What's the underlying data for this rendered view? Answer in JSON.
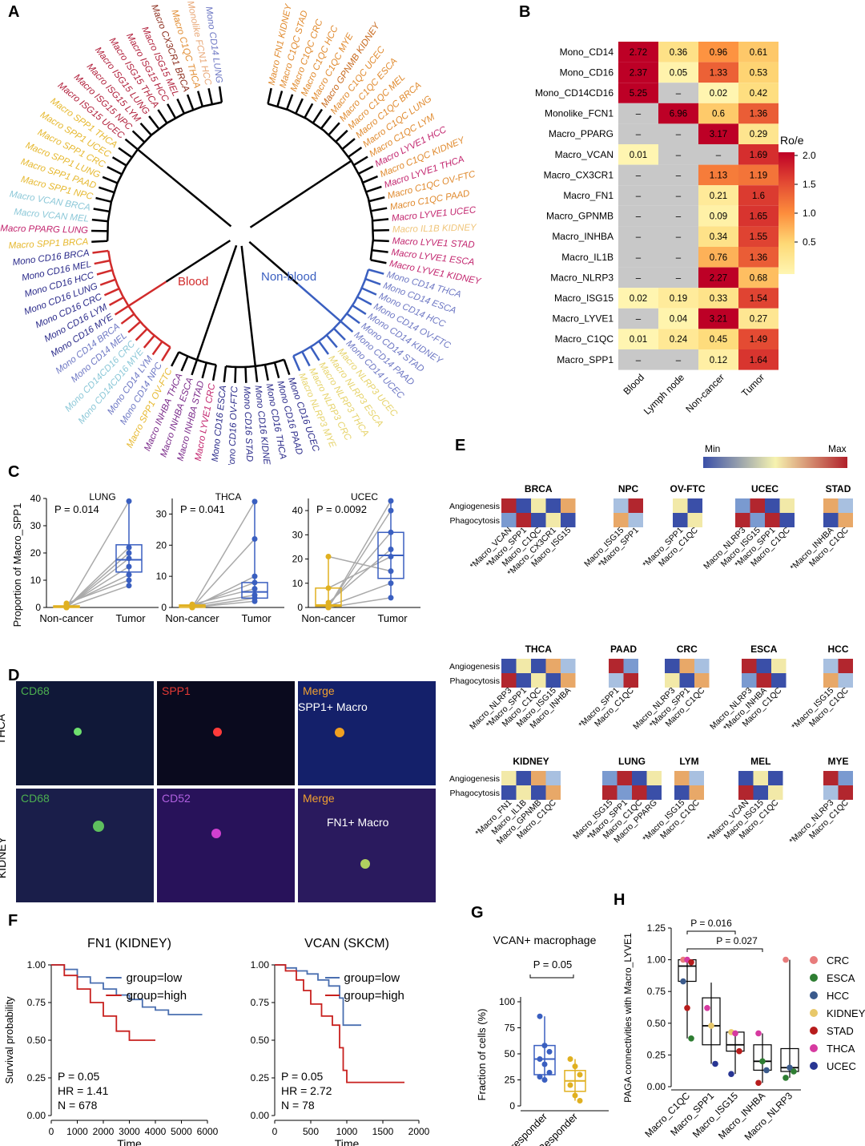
{
  "panels": {
    "A": "A",
    "B": "B",
    "C": "C",
    "D": "D",
    "E": "E",
    "F": "F",
    "G": "G",
    "H": "H"
  },
  "panelA": {
    "blood_label": "Blood",
    "nonblood_label": "Non-blood",
    "leaves": [
      {
        "t": "Macro FN1 KIDNEY",
        "c": "#e08a2e"
      },
      {
        "t": "Macro C1QC STAD",
        "c": "#e08a2e"
      },
      {
        "t": "Macro C1QC CRC",
        "c": "#e08a2e"
      },
      {
        "t": "Macro C1QC HCC",
        "c": "#e08a2e"
      },
      {
        "t": "Macro C1QC MYE",
        "c": "#e08a2e"
      },
      {
        "t": "Macro GPNMB KIDNEY",
        "c": "#c86a1e"
      },
      {
        "t": "Macro C1QC UCEC",
        "c": "#e08a2e"
      },
      {
        "t": "Macro C1QC ESCA",
        "c": "#e08a2e"
      },
      {
        "t": "Macro C1QC MEL",
        "c": "#e08a2e"
      },
      {
        "t": "Macro C1QC BRCA",
        "c": "#e08a2e"
      },
      {
        "t": "Macro C1QC LUNG",
        "c": "#e08a2e"
      },
      {
        "t": "Macro C1QC LYM",
        "c": "#e08a2e"
      },
      {
        "t": "Macro LYVE1 HCC",
        "c": "#c2256e"
      },
      {
        "t": "Macro C1QC KIDNEY",
        "c": "#e08a2e"
      },
      {
        "t": "Macro LYVE1 THCA",
        "c": "#c2256e"
      },
      {
        "t": "Macro C1QC OV-FTC",
        "c": "#e08a2e"
      },
      {
        "t": "Macro C1QC PAAD",
        "c": "#e08a2e"
      },
      {
        "t": "Macro LYVE1 UCEC",
        "c": "#c2256e"
      },
      {
        "t": "Macro IL1B KIDNEY",
        "c": "#f0c57a"
      },
      {
        "t": "Macro LYVE1 STAD",
        "c": "#c2256e"
      },
      {
        "t": "Macro LYVE1 ESCA",
        "c": "#c2256e"
      },
      {
        "t": "Macro LYVE1 KIDNEY",
        "c": "#c2256e"
      },
      {
        "t": "Mono CD14 THCA",
        "c": "#6e78c4"
      },
      {
        "t": "Mono CD14 ESCA",
        "c": "#6e78c4"
      },
      {
        "t": "Mono CD14 HCC",
        "c": "#6e78c4"
      },
      {
        "t": "Mono CD14 OV-FTC",
        "c": "#6e78c4"
      },
      {
        "t": "Mono CD14 KIDNEY",
        "c": "#6e78c4"
      },
      {
        "t": "Mono CD14 STAD",
        "c": "#6e78c4"
      },
      {
        "t": "Mono CD14 PAAD",
        "c": "#6e78c4"
      },
      {
        "t": "Mono CD14 UCEC",
        "c": "#6e78c4"
      },
      {
        "t": "Macro NLRP3 UCEC",
        "c": "#e6d36a"
      },
      {
        "t": "Macro NLRP3 ESCA",
        "c": "#e6d36a"
      },
      {
        "t": "Macro NLRP3 THCA",
        "c": "#e6d36a"
      },
      {
        "t": "Macro NLRP3 CRC",
        "c": "#e6d36a"
      },
      {
        "t": "Macro NLRP3 MYE",
        "c": "#e6d36a"
      },
      {
        "t": "Mono CD16 UCEC",
        "c": "#2a2a8a"
      },
      {
        "t": "Mono CD16 PAAD",
        "c": "#2a2a8a"
      },
      {
        "t": "Mono CD16 THCA",
        "c": "#2a2a8a"
      },
      {
        "t": "Mono CD16 KIDNEY",
        "c": "#2a2a8a"
      },
      {
        "t": "Mono CD16 STAD",
        "c": "#2a2a8a"
      },
      {
        "t": "Mono CD16 OV-FTC",
        "c": "#2a2a8a"
      },
      {
        "t": "Mono CD16 ESCA",
        "c": "#2a2a8a"
      },
      {
        "t": "Macro LYVE1 CRC",
        "c": "#c2256e"
      },
      {
        "t": "Macro INHBA STAD",
        "c": "#7a2a8a"
      },
      {
        "t": "Macro INHBA ESCA",
        "c": "#7a2a8a"
      },
      {
        "t": "Macro INHBA THCA",
        "c": "#7a2a8a"
      },
      {
        "t": "Macro SPP1 OV-FTC",
        "c": "#e6b82e"
      },
      {
        "t": "Mono CD14 NPC",
        "c": "#6e78c4"
      },
      {
        "t": "Mono CD14 LYM",
        "c": "#6e78c4"
      },
      {
        "t": "Mono CD14CD16 MYE",
        "c": "#8cc8d8"
      },
      {
        "t": "Mono CD14CD16 CRC",
        "c": "#8cc8d8"
      },
      {
        "t": "Mono CD14 MEL",
        "c": "#6e78c4"
      },
      {
        "t": "Mono CD14 BRCA",
        "c": "#6e78c4"
      },
      {
        "t": "Mono CD16 MYE",
        "c": "#2a2a8a"
      },
      {
        "t": "Mono CD16 LYM",
        "c": "#2a2a8a"
      },
      {
        "t": "Mono CD16 CRC",
        "c": "#2a2a8a"
      },
      {
        "t": "Mono CD16 LUNG",
        "c": "#2a2a8a"
      },
      {
        "t": "Mono CD16 HCC",
        "c": "#2a2a8a"
      },
      {
        "t": "Mono CD16 MEL",
        "c": "#2a2a8a"
      },
      {
        "t": "Mono CD16 BRCA",
        "c": "#2a2a8a"
      },
      {
        "t": "Macro SPP1 BRCA",
        "c": "#e6b82e"
      },
      {
        "t": "Macro PPARG LUNG",
        "c": "#c2256e"
      },
      {
        "t": "Macro VCAN MEL",
        "c": "#8cc8d8"
      },
      {
        "t": "Macro VCAN BRCA",
        "c": "#8cc8d8"
      },
      {
        "t": "Macro SPP1 NPC",
        "c": "#e6b82e"
      },
      {
        "t": "Macro SPP1 PAAD",
        "c": "#e6b82e"
      },
      {
        "t": "Macro SPP1 LUNG",
        "c": "#e6b82e"
      },
      {
        "t": "Macro SPP1 CRC",
        "c": "#e6b82e"
      },
      {
        "t": "Macro SPP1 UCEC",
        "c": "#e6b82e"
      },
      {
        "t": "Macro SPP1 THCA",
        "c": "#e6b82e"
      },
      {
        "t": "Macro ISG15 UCEC",
        "c": "#b01e3a"
      },
      {
        "t": "Macro ISG15 NPC",
        "c": "#b01e3a"
      },
      {
        "t": "Macro ISG15 LYM",
        "c": "#b01e3a"
      },
      {
        "t": "Macro ISG15 LUNG",
        "c": "#b01e3a"
      },
      {
        "t": "Macro ISG15 THCA",
        "c": "#b01e3a"
      },
      {
        "t": "Macro ISG15 HCC",
        "c": "#b01e3a"
      },
      {
        "t": "Macro ISG15 MEL",
        "c": "#b01e3a"
      },
      {
        "t": "Macro CX3CR1 BRCA",
        "c": "#8a2a1a"
      },
      {
        "t": "Macro C1QC THCA",
        "c": "#e08a2e"
      },
      {
        "t": "Monolike FCN1 HCC",
        "c": "#e8a878"
      },
      {
        "t": "Mono CD14 LUNG",
        "c": "#6e78c4"
      }
    ]
  },
  "panelB": {
    "rows": [
      "Mono_CD14",
      "Mono_CD16",
      "Mono_CD14CD16",
      "Monolike_FCN1",
      "Macro_PPARG",
      "Macro_VCAN",
      "Macro_CX3CR1",
      "Macro_FN1",
      "Macro_GPNMB",
      "Macro_INHBA",
      "Macro_IL1B",
      "Macro_NLRP3",
      "Macro_ISG15",
      "Macro_LYVE1",
      "Macro_C1QC",
      "Macro_SPP1"
    ],
    "cols": [
      "Blood",
      "Lymph node",
      "Non-cancer",
      "Tumor"
    ],
    "values": [
      [
        "2.72",
        "0.36",
        "0.96",
        "0.61"
      ],
      [
        "2.37",
        "0.05",
        "1.33",
        "0.53"
      ],
      [
        "5.25",
        "–",
        "0.02",
        "0.42"
      ],
      [
        "–",
        "6.96",
        "0.6",
        "1.36"
      ],
      [
        "–",
        "–",
        "3.17",
        "0.29"
      ],
      [
        "0.01",
        "–",
        "–",
        "1.69"
      ],
      [
        "–",
        "–",
        "1.13",
        "1.19"
      ],
      [
        "–",
        "–",
        "0.21",
        "1.6"
      ],
      [
        "–",
        "–",
        "0.09",
        "1.65"
      ],
      [
        "–",
        "–",
        "0.34",
        "1.55"
      ],
      [
        "–",
        "–",
        "0.76",
        "1.36"
      ],
      [
        "–",
        "–",
        "2.27",
        "0.68"
      ],
      [
        "0.02",
        "0.19",
        "0.33",
        "1.54"
      ],
      [
        "–",
        "0.04",
        "3.21",
        "0.27"
      ],
      [
        "0.01",
        "0.24",
        "0.45",
        "1.49"
      ],
      [
        "–",
        "–",
        "0.12",
        "1.64"
      ]
    ],
    "legend_title": "Ro/e",
    "legend_ticks": [
      "2.0",
      "1.5",
      "1.0",
      "0.5"
    ]
  },
  "panelC": {
    "ylabel": "Proportion of Macro_SPP1",
    "xcats": [
      "Non-cancer",
      "Tumor"
    ],
    "plots": [
      {
        "title": "LUNG",
        "p": "P = 0.014",
        "ymax": 40,
        "ticks": [
          "0",
          "10",
          "20",
          "30",
          "40"
        ]
      },
      {
        "title": "THCA",
        "p": "P = 0.041",
        "ymax": 35,
        "ticks": [
          "0",
          "10",
          "20",
          "30"
        ]
      },
      {
        "title": "UCEC",
        "p": "P = 0.0092",
        "ymax": 45,
        "ticks": [
          "0",
          "10",
          "20",
          "30",
          "40"
        ]
      }
    ]
  },
  "panelD": {
    "row1": "THCA",
    "row2": "KIDNEY",
    "ch": [
      "CD68",
      "SPP1",
      "Merge",
      "CD68",
      "CD52",
      "Merge"
    ],
    "lbl1": "SPP1+ Macro",
    "lbl2": "FN1+ Macro"
  },
  "panelE": {
    "legend_min": "Min",
    "legend_max": "Max",
    "row_angio": "Angiogenesis",
    "row_phago": "Phagocytosis",
    "groups": [
      {
        "n": "BRCA",
        "c": [
          "*Macro_VCAN",
          "*Macro_SPP1",
          "Macro_C1QC",
          "*Macro_CX3CR1",
          "Macro_ISG15"
        ]
      },
      {
        "n": "NPC",
        "c": [
          "Macro_ISG15",
          "*Macro_SPP1"
        ]
      },
      {
        "n": "OV-FTC",
        "c": [
          "*Macro_SPP1",
          "Macro_C1QC"
        ]
      },
      {
        "n": "UCEC",
        "c": [
          "Macro_NLRP3",
          "Macro_ISG15",
          "*Macro_SPP1",
          "Macro_C1QC"
        ]
      },
      {
        "n": "STAD",
        "c": [
          "*Macro_INHBA",
          "Macro_C1QC"
        ]
      },
      {
        "n": "THCA",
        "c": [
          "Macro_NLRP3",
          "*Macro_SPP1",
          "Macro_C1QC",
          "Macro_ISG15",
          "Macro_INHBA"
        ]
      },
      {
        "n": "PAAD",
        "c": [
          "*Macro_SPP1",
          "Macro_C1QC"
        ]
      },
      {
        "n": "CRC",
        "c": [
          "Macro_NLRP3",
          "*Macro_SPP1",
          "Macro_C1QC"
        ]
      },
      {
        "n": "ESCA",
        "c": [
          "Macro_NLRP3",
          "*Macro_INHBA",
          "Macro_C1QC"
        ]
      },
      {
        "n": "HCC",
        "c": [
          "*Macro_ISG15",
          "Macro_C1QC"
        ]
      },
      {
        "n": "KIDNEY",
        "c": [
          "*Macro_FN1",
          "Macro_IL1B",
          "Macro_GPNMB",
          "Macro_C1QC"
        ]
      },
      {
        "n": "LUNG",
        "c": [
          "Macro_ISG15",
          "*Macro_SPP1",
          "Macro_C1QC",
          "Macro_PPARG"
        ]
      },
      {
        "n": "LYM",
        "c": [
          "*Macro_ISG15",
          "Macro_C1QC"
        ]
      },
      {
        "n": "MEL",
        "c": [
          "*Macro_VCAN",
          "Macro_ISG15",
          "Macro_C1QC"
        ]
      },
      {
        "n": "MYE",
        "c": [
          "*Macro_NLRP3",
          "Macro_C1QC"
        ]
      }
    ]
  },
  "panelF": {
    "ylabel": "Survival probability",
    "xlabel": "Time",
    "left": {
      "title": "FN1 (KIDNEY)",
      "low": "group=low",
      "high": "group=high",
      "p": "P = 0.05",
      "hr": "HR = 1.41",
      "n": "N = 678",
      "xticks": [
        "0",
        "1000",
        "2000",
        "3000",
        "4000",
        "5000",
        "6000"
      ]
    },
    "right": {
      "title": "VCAN (SKCM)",
      "low": "group=low",
      "high": "group=high",
      "p": "P = 0.05",
      "hr": "HR = 2.72",
      "n": "N = 78",
      "xticks": [
        "0",
        "500",
        "1000",
        "1500",
        "2000"
      ]
    },
    "yticks": [
      "1.00",
      "0.75",
      "0.50",
      "0.25",
      "0.00"
    ]
  },
  "panelG": {
    "title": "VCAN+ macrophage",
    "p": "P = 0.05",
    "ylabel": "Fraction of cells (%)",
    "xcats": [
      "Non-responder",
      "Responder"
    ],
    "yticks": [
      "100",
      "75",
      "50",
      "25",
      "0"
    ]
  },
  "panelH": {
    "ylabel": "PAGA connectivities with Macro_LYVE1",
    "p1": "P = 0.016",
    "p2": "P = 0.027",
    "xcats": [
      "Macro_C1QC",
      "Macro_SPP1",
      "Macro_ISG15",
      "Macro_INHBA",
      "Macro_NLRP3"
    ],
    "yticks": [
      "1.25",
      "1.00",
      "0.75",
      "0.50",
      "0.25",
      "0.00"
    ],
    "legend": [
      {
        "t": "CRC",
        "c": "#e87c7c"
      },
      {
        "t": "ESCA",
        "c": "#2e7d32"
      },
      {
        "t": "HCC",
        "c": "#3a5a8c"
      },
      {
        "t": "KIDNEY",
        "c": "#e8c86a"
      },
      {
        "t": "STAD",
        "c": "#b71c1c"
      },
      {
        "t": "THCA",
        "c": "#d63aa0"
      },
      {
        "t": "UCEC",
        "c": "#283593"
      }
    ]
  }
}
